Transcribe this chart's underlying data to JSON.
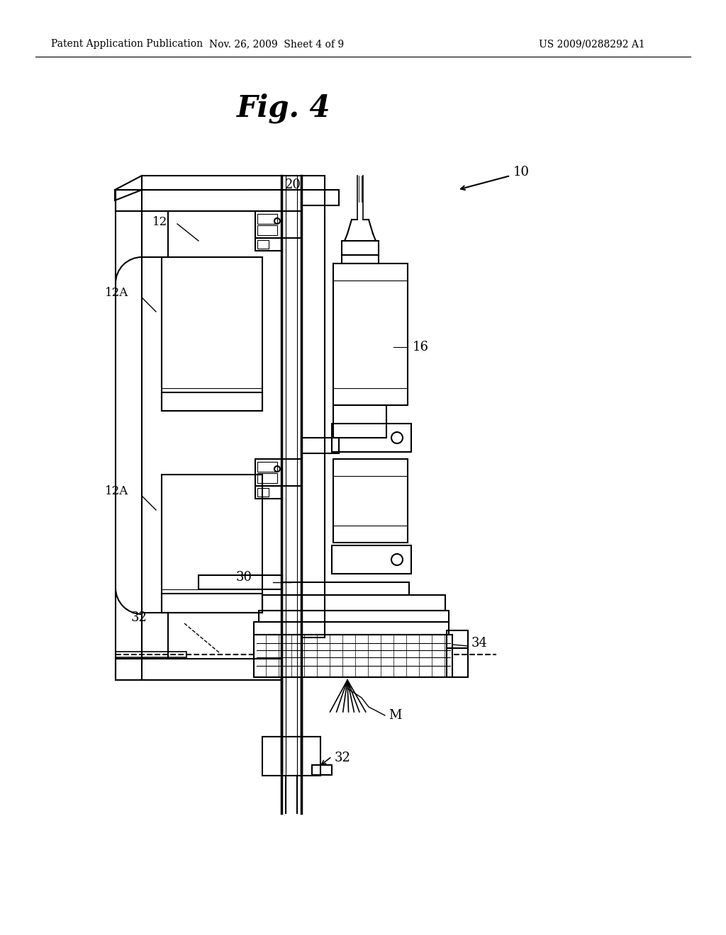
{
  "background_color": "#ffffff",
  "header_left": "Patent Application Publication",
  "header_center": "Nov. 26, 2009  Sheet 4 of 9",
  "header_right": "US 2009/0288292 A1",
  "fig_title": "Fig. 4"
}
